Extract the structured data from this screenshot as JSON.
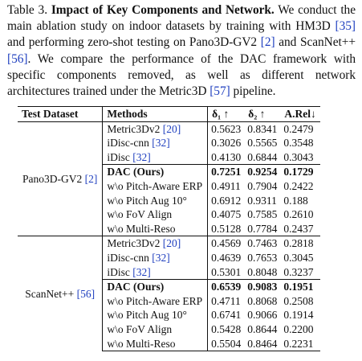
{
  "caption": {
    "label": "Table 3.",
    "title": "Impact of Key Components and Network.",
    "text_1": " We conduct the main ablation study on indoor datasets by training with HM3D ",
    "cite_hm3d": "[35]",
    "text_2": " and performing zero-shot testing on Pano3D-GV2 ",
    "cite_pano": "[2]",
    "text_3": " and ScanNet++ ",
    "cite_scannet": "[56]",
    "text_4": ". We compare the performance of the DAC framework with specific components removed, as well as different network architectures trained under the Metric3D ",
    "cite_metric3d": "[57]",
    "text_5": " pipeline."
  },
  "table": {
    "headers": {
      "dataset": "Test Dataset",
      "methods": "Methods",
      "d1": "δ₁ ↑",
      "d2": "δ₂ ↑",
      "arel": "A.Rel↓"
    },
    "groups": [
      {
        "dataset": "Pano3D-GV2",
        "dataset_cite": "[2]",
        "rows": [
          {
            "method": "Metric3Dv2",
            "cite": "[20]",
            "d1": "0.5623",
            "d2": "0.8341",
            "arel": "0.2479"
          },
          {
            "method": "iDisc-cnn",
            "cite": "[32]",
            "d1": "0.3026",
            "d2": "0.5565",
            "arel": "0.3548"
          },
          {
            "method": "iDisc",
            "cite": "[32]",
            "d1": "0.4130",
            "d2": "0.6844",
            "arel": "0.3043"
          },
          {
            "method": "DAC (Ours)",
            "cite": "",
            "d1": "0.7251",
            "d2": "0.9254",
            "arel": "0.1729",
            "bold": true
          },
          {
            "method": "w\\o Pitch-Aware ERP",
            "cite": "",
            "d1": "0.4911",
            "d2": "0.7904",
            "arel": "0.2422"
          },
          {
            "method": "w\\o Pitch Aug 10°",
            "cite": "",
            "d1": "0.6912",
            "d2": "0.9311",
            "arel": "0.188"
          },
          {
            "method": "w\\o FoV Align",
            "cite": "",
            "d1": "0.4075",
            "d2": "0.7585",
            "arel": "0.2610"
          },
          {
            "method": "w\\o Multi-Reso",
            "cite": "",
            "d1": "0.5128",
            "d2": "0.7784",
            "arel": "0.2437"
          }
        ]
      },
      {
        "dataset": "ScanNet++",
        "dataset_cite": "[56]",
        "rows": [
          {
            "method": "Metric3Dv2",
            "cite": "[20]",
            "d1": "0.4569",
            "d2": "0.7463",
            "arel": "0.2818"
          },
          {
            "method": "iDisc-cnn",
            "cite": "[32]",
            "d1": "0.4639",
            "d2": "0.7653",
            "arel": "0.3045"
          },
          {
            "method": "iDisc",
            "cite": "[32]",
            "d1": "0.5301",
            "d2": "0.8048",
            "arel": "0.3237"
          },
          {
            "method": "DAC (Ours)",
            "cite": "",
            "d1": "0.6539",
            "d2": "0.9083",
            "arel": "0.1951",
            "bold": true
          },
          {
            "method": "w\\o Pitch-Aware ERP",
            "cite": "",
            "d1": "0.4711",
            "d2": "0.8068",
            "arel": "0.2508"
          },
          {
            "method": "w\\o Pitch Aug 10°",
            "cite": "",
            "d1": "0.6741",
            "d2": "0.9066",
            "arel": "0.1914"
          },
          {
            "method": "w\\o FoV Align",
            "cite": "",
            "d1": "0.5428",
            "d2": "0.8644",
            "arel": "0.2200"
          },
          {
            "method": "w\\o Multi-Reso",
            "cite": "",
            "d1": "0.5504",
            "d2": "0.8464",
            "arel": "0.2231"
          }
        ]
      }
    ]
  },
  "colors": {
    "citation": "#1f3fbf",
    "text": "#111111"
  }
}
